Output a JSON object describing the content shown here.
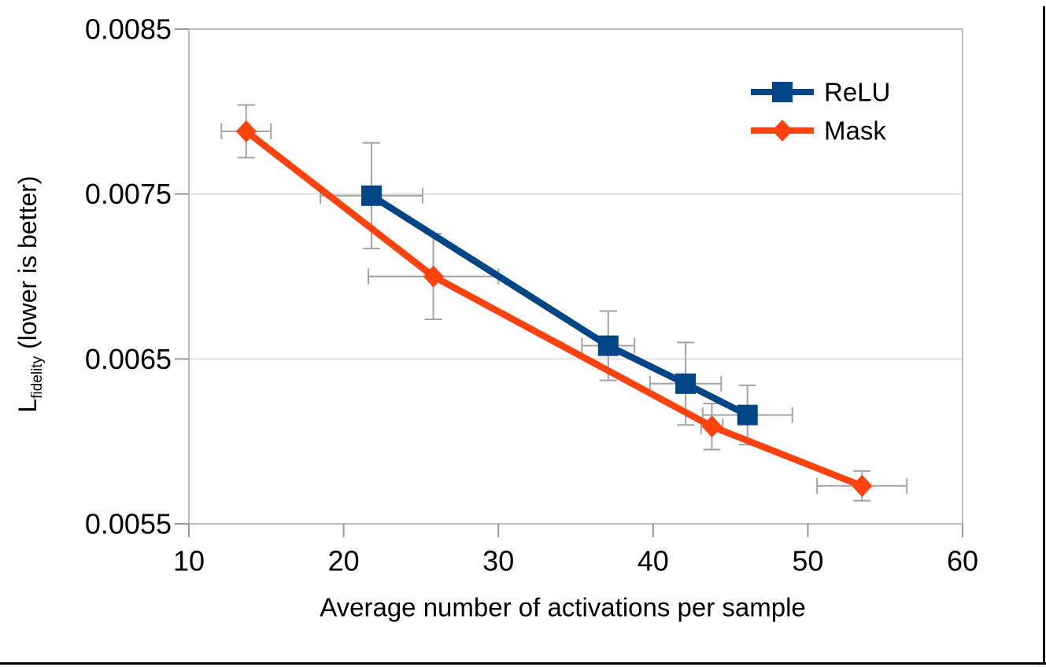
{
  "page": {
    "background": "#ffffff",
    "frame_color": "#000000"
  },
  "legend": {
    "position": "top-right-inside",
    "items": [
      {
        "label": "ReLU",
        "color": "#004586",
        "marker": "square"
      },
      {
        "label": "Mask",
        "color": "#FF420E",
        "marker": "diamond"
      }
    ]
  },
  "chart_data": {
    "type": "line",
    "title": "",
    "xlabel": "Average number of activations per sample",
    "ylabel": "L_fidelity (lower is better)",
    "ylabel_parts": {
      "main": "L",
      "sub": "fidelity",
      "rest": "(lower is better)"
    },
    "xlim": [
      10,
      60
    ],
    "ylim": [
      0.0055,
      0.0085
    ],
    "x_ticks": [
      "10",
      "20",
      "30",
      "40",
      "50",
      "60"
    ],
    "x_tick_values": [
      10,
      20,
      30,
      40,
      50,
      60
    ],
    "y_ticks": [
      "0.0055",
      "0.0065",
      "0.0075",
      "0.0085"
    ],
    "y_tick_values": [
      0.0055,
      0.0065,
      0.0075,
      0.0085
    ],
    "grid": "horizontal-only",
    "grid_color": "#e0e0e0",
    "border_color": "#bdbdbd",
    "tick_color": "#999999",
    "error_bar_color": "#a3a3a3",
    "series": [
      {
        "name": "ReLU",
        "color": "#004586",
        "marker": "square",
        "points": [
          {
            "x": 21.8,
            "y": 0.00749,
            "xerr": 3.3,
            "yerr": 0.00032
          },
          {
            "x": 37.1,
            "y": 0.00658,
            "xerr": 1.7,
            "yerr": 0.00021
          },
          {
            "x": 42.1,
            "y": 0.00635,
            "xerr": 2.3,
            "yerr": 0.00025
          },
          {
            "x": 46.1,
            "y": 0.00616,
            "xerr": 2.9,
            "yerr": 0.00018
          }
        ]
      },
      {
        "name": "Mask",
        "color": "#FF420E",
        "marker": "diamond",
        "points": [
          {
            "x": 13.7,
            "y": 0.00788,
            "xerr": 1.6,
            "yerr": 0.00016
          },
          {
            "x": 25.8,
            "y": 0.007,
            "xerr": 4.2,
            "yerr": 0.00026
          },
          {
            "x": 43.8,
            "y": 0.00609,
            "xerr": 0.7,
            "yerr": 0.00014
          },
          {
            "x": 53.5,
            "y": 0.00573,
            "xerr": 2.9,
            "yerr": 9e-05
          }
        ]
      }
    ]
  }
}
